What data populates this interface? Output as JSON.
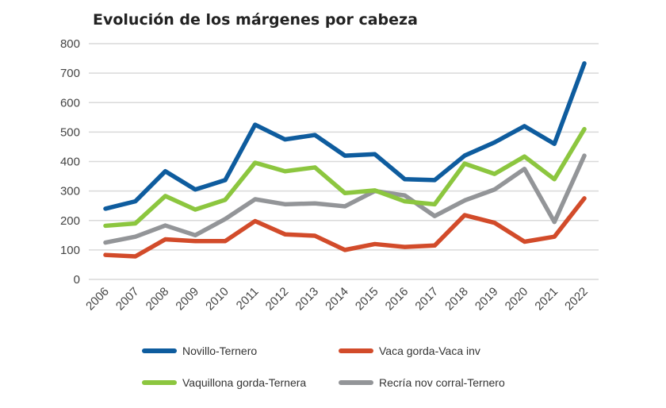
{
  "chart_data": {
    "type": "line",
    "title": "Evolución de los márgenes por cabeza",
    "xlabel": "",
    "ylabel": "",
    "ylim": [
      0,
      800
    ],
    "yticks": [
      0,
      100,
      200,
      300,
      400,
      500,
      600,
      700,
      800
    ],
    "grid": true,
    "legend_position": "bottom",
    "x": [
      "2006",
      "2007",
      "2008",
      "2009",
      "2010",
      "2011",
      "2012",
      "2013",
      "2014",
      "2015",
      "2016",
      "2017",
      "2018",
      "2019",
      "2020",
      "2021",
      "2022"
    ],
    "series": [
      {
        "name": "Novillo-Ternero",
        "color": "#0e5c9e",
        "values": [
          240,
          265,
          367,
          305,
          337,
          525,
          475,
          490,
          420,
          425,
          340,
          337,
          420,
          465,
          520,
          460,
          733
        ]
      },
      {
        "name": "Vaca gorda-Vaca inv",
        "color": "#d24b2a",
        "values": [
          83,
          78,
          136,
          130,
          130,
          198,
          153,
          148,
          100,
          120,
          110,
          115,
          218,
          192,
          128,
          145,
          275
        ]
      },
      {
        "name": "Vaquillona gorda-Ternera",
        "color": "#8cc63f",
        "values": [
          182,
          190,
          283,
          237,
          270,
          396,
          367,
          380,
          293,
          302,
          265,
          255,
          393,
          358,
          417,
          340,
          510
        ]
      },
      {
        "name": "Recría nov  corral-Ternero",
        "color": "#939598",
        "values": [
          125,
          145,
          183,
          150,
          205,
          272,
          255,
          258,
          248,
          300,
          285,
          215,
          268,
          305,
          375,
          195,
          420
        ]
      }
    ]
  }
}
